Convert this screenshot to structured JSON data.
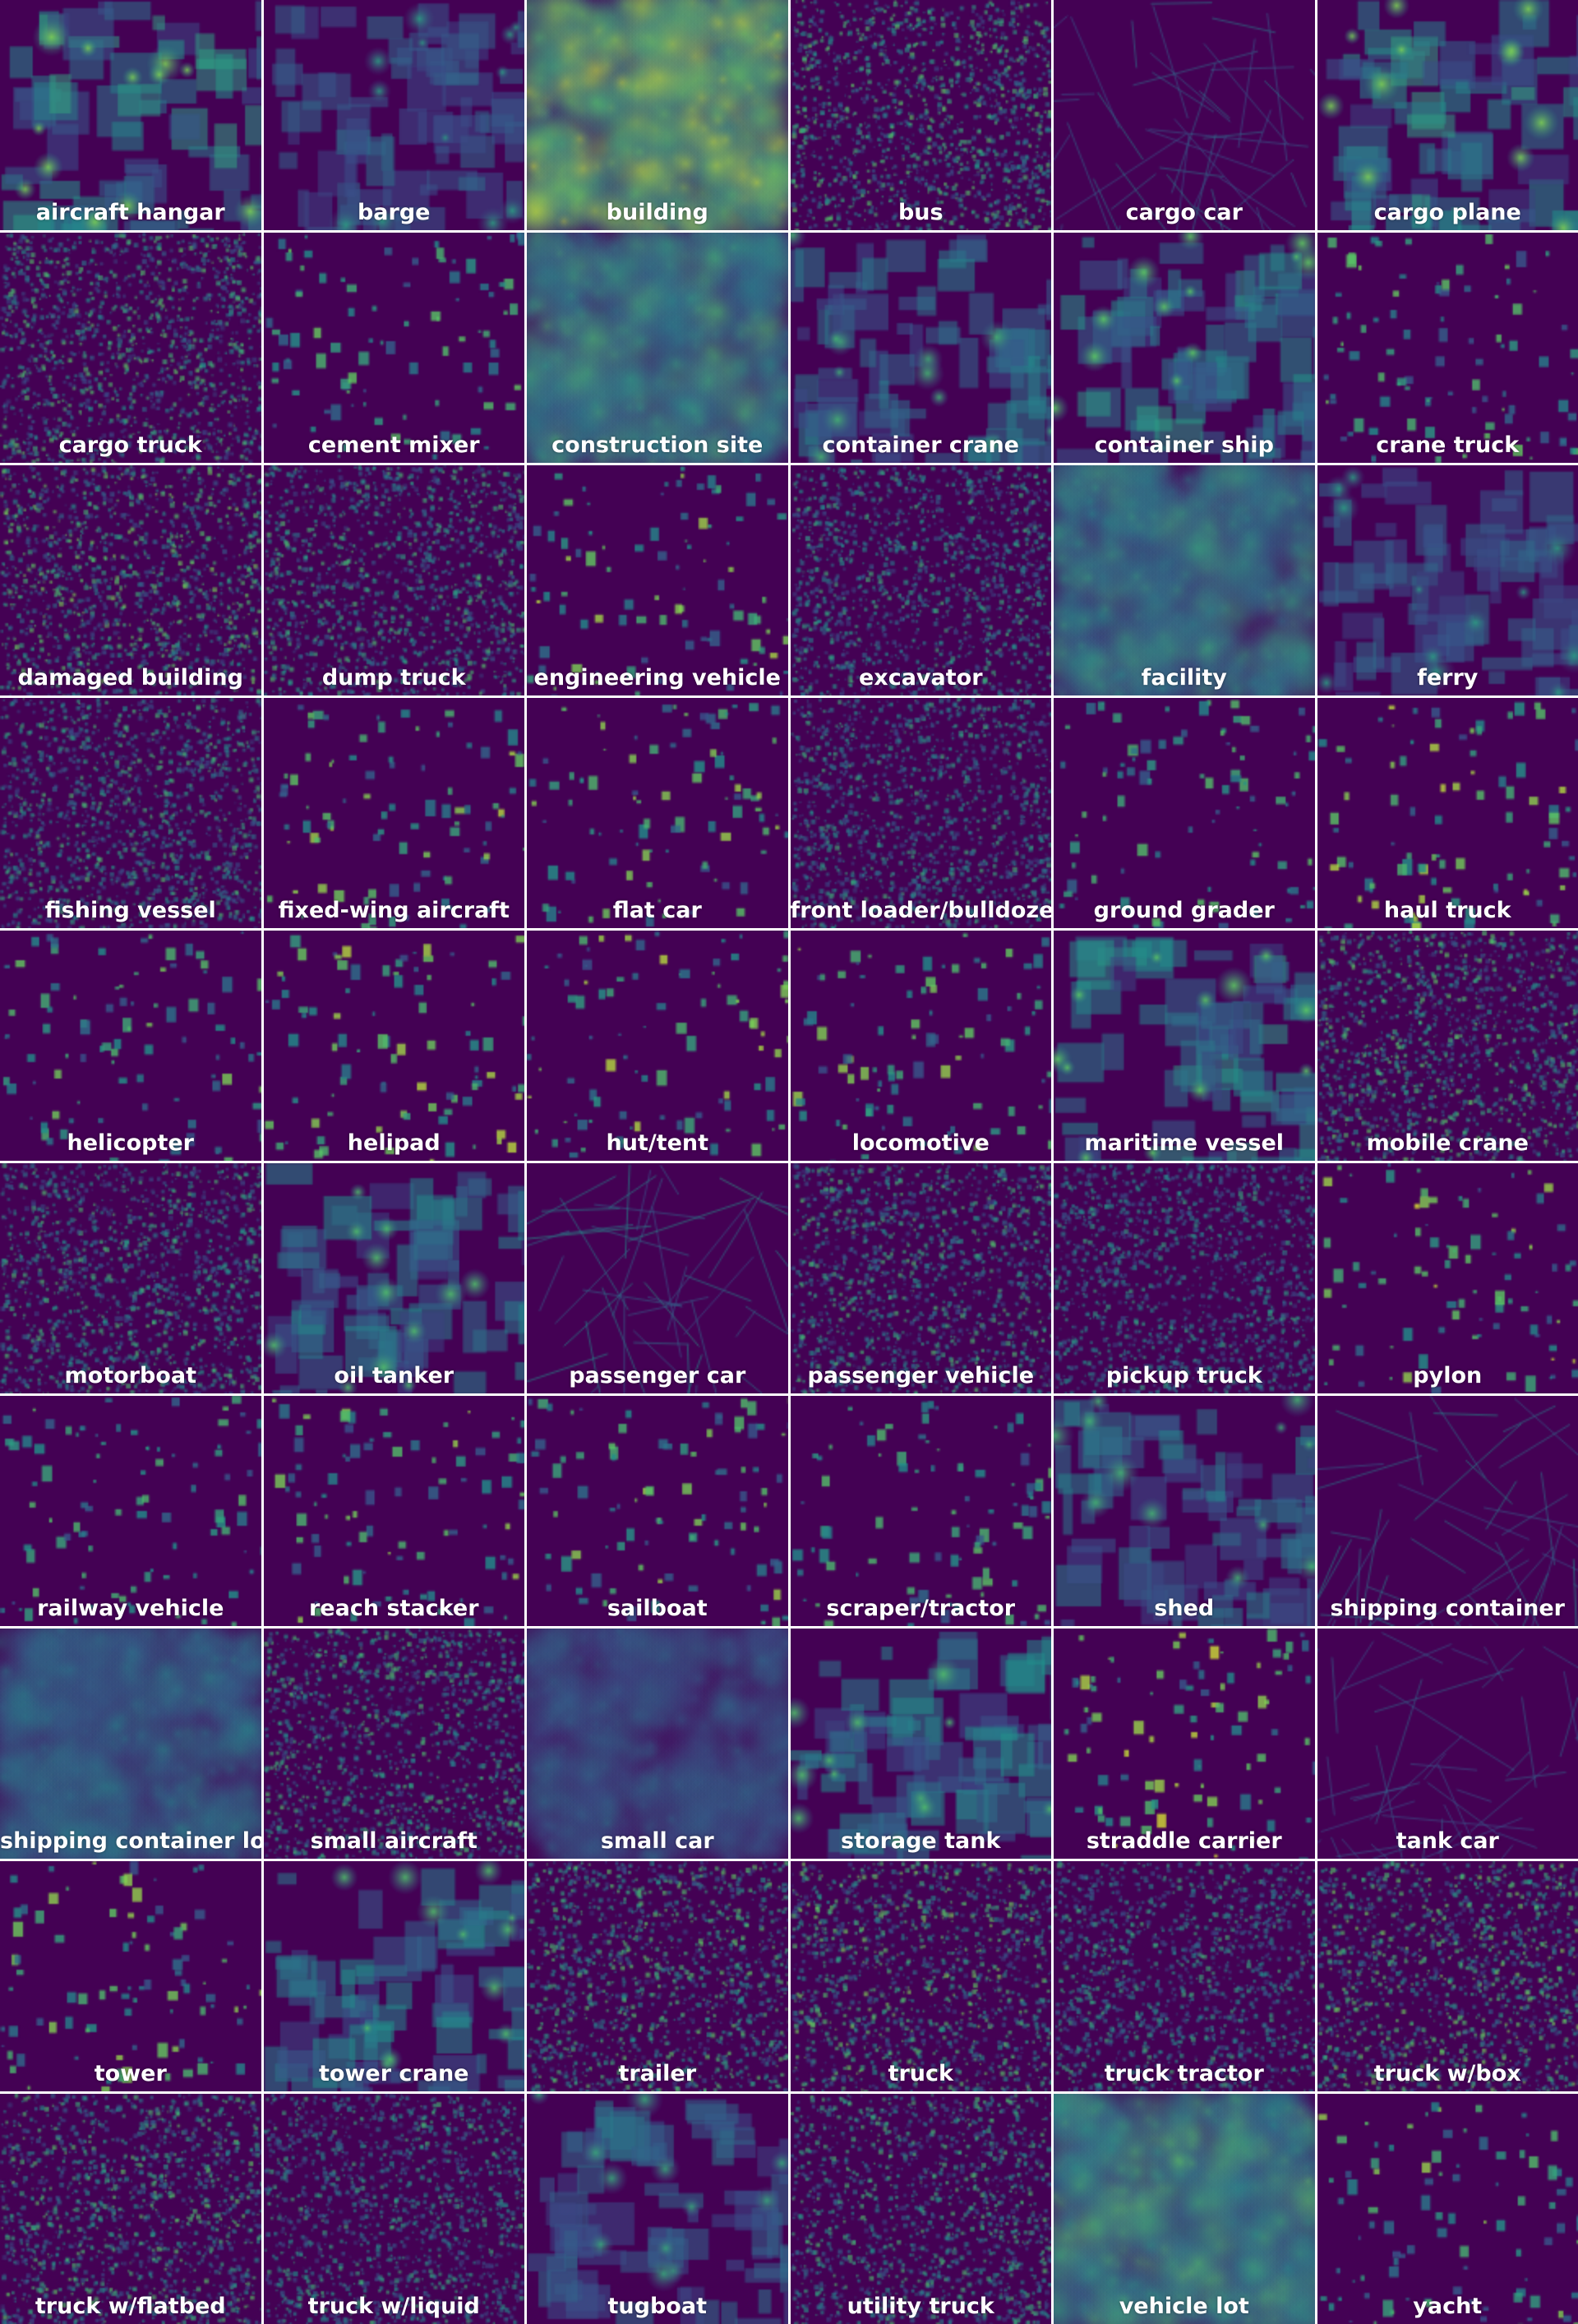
{
  "colormap": {
    "name": "viridis",
    "low": "#440154",
    "mid_low": "#3b528b",
    "mid": "#21918c",
    "mid_high": "#5ec962",
    "high": "#fde725"
  },
  "tiles": [
    {
      "label": "aircraft hangar",
      "style": "boxes",
      "intensity": 0.45
    },
    {
      "label": "barge",
      "style": "boxes",
      "intensity": 0.2
    },
    {
      "label": "building",
      "style": "dense",
      "intensity": 0.85
    },
    {
      "label": "bus",
      "style": "speckle",
      "intensity": 0.3
    },
    {
      "label": "cargo car",
      "style": "lines",
      "intensity": 0.2
    },
    {
      "label": "cargo plane",
      "style": "boxes",
      "intensity": 0.45
    },
    {
      "label": "cargo truck",
      "style": "speckle",
      "intensity": 0.3
    },
    {
      "label": "cement mixer",
      "style": "sparse",
      "intensity": 0.15
    },
    {
      "label": "construction site",
      "style": "dense",
      "intensity": 0.6
    },
    {
      "label": "container crane",
      "style": "boxes",
      "intensity": 0.3
    },
    {
      "label": "container ship",
      "style": "boxes",
      "intensity": 0.4
    },
    {
      "label": "crane truck",
      "style": "sparse",
      "intensity": 0.15
    },
    {
      "label": "damaged building",
      "style": "speckle",
      "intensity": 0.35
    },
    {
      "label": "dump truck",
      "style": "speckle",
      "intensity": 0.25
    },
    {
      "label": "engineering vehicle",
      "style": "sparse",
      "intensity": 0.25
    },
    {
      "label": "excavator",
      "style": "speckle",
      "intensity": 0.2
    },
    {
      "label": "facility",
      "style": "dense",
      "intensity": 0.55
    },
    {
      "label": "ferry",
      "style": "boxes",
      "intensity": 0.2
    },
    {
      "label": "fishing vessel",
      "style": "speckle",
      "intensity": 0.25
    },
    {
      "label": "fixed-wing aircraft",
      "style": "sparse",
      "intensity": 0.25
    },
    {
      "label": "flat car",
      "style": "sparse",
      "intensity": 0.2
    },
    {
      "label": "front loader/bulldozer",
      "style": "speckle",
      "intensity": 0.2
    },
    {
      "label": "ground grader",
      "style": "sparse",
      "intensity": 0.1
    },
    {
      "label": "haul truck",
      "style": "sparse",
      "intensity": 0.25
    },
    {
      "label": "helicopter",
      "style": "sparse",
      "intensity": 0.15
    },
    {
      "label": "helipad",
      "style": "sparse",
      "intensity": 0.25
    },
    {
      "label": "hut/tent",
      "style": "sparse",
      "intensity": 0.25
    },
    {
      "label": "locomotive",
      "style": "sparse",
      "intensity": 0.2
    },
    {
      "label": "maritime vessel",
      "style": "boxes",
      "intensity": 0.4
    },
    {
      "label": "mobile crane",
      "style": "speckle",
      "intensity": 0.3
    },
    {
      "label": "motorboat",
      "style": "speckle",
      "intensity": 0.25
    },
    {
      "label": "oil tanker",
      "style": "boxes",
      "intensity": 0.35
    },
    {
      "label": "passenger car",
      "style": "lines",
      "intensity": 0.3
    },
    {
      "label": "passenger vehicle",
      "style": "speckle",
      "intensity": 0.25
    },
    {
      "label": "pickup truck",
      "style": "speckle",
      "intensity": 0.15
    },
    {
      "label": "pylon",
      "style": "sparse",
      "intensity": 0.3
    },
    {
      "label": "railway vehicle",
      "style": "sparse",
      "intensity": 0.1
    },
    {
      "label": "reach stacker",
      "style": "sparse",
      "intensity": 0.2
    },
    {
      "label": "sailboat",
      "style": "sparse",
      "intensity": 0.2
    },
    {
      "label": "scraper/tractor",
      "style": "sparse",
      "intensity": 0.1
    },
    {
      "label": "shed",
      "style": "boxes",
      "intensity": 0.3
    },
    {
      "label": "shipping container",
      "style": "lines",
      "intensity": 0.25
    },
    {
      "label": "shipping container lot",
      "style": "dense",
      "intensity": 0.45
    },
    {
      "label": "small aircraft",
      "style": "speckle",
      "intensity": 0.25
    },
    {
      "label": "small car",
      "style": "dense",
      "intensity": 0.35
    },
    {
      "label": "storage tank",
      "style": "boxes",
      "intensity": 0.35
    },
    {
      "label": "straddle carrier",
      "style": "sparse",
      "intensity": 0.3
    },
    {
      "label": "tank car",
      "style": "lines",
      "intensity": 0.1
    },
    {
      "label": "tower",
      "style": "sparse",
      "intensity": 0.2
    },
    {
      "label": "tower crane",
      "style": "boxes",
      "intensity": 0.35
    },
    {
      "label": "trailer",
      "style": "speckle",
      "intensity": 0.3
    },
    {
      "label": "truck",
      "style": "speckle",
      "intensity": 0.35
    },
    {
      "label": "truck tractor",
      "style": "speckle",
      "intensity": 0.2
    },
    {
      "label": "truck w/box",
      "style": "speckle",
      "intensity": 0.35
    },
    {
      "label": "truck w/flatbed",
      "style": "speckle",
      "intensity": 0.3
    },
    {
      "label": "truck w/liquid",
      "style": "speckle",
      "intensity": 0.2
    },
    {
      "label": "tugboat",
      "style": "boxes",
      "intensity": 0.25
    },
    {
      "label": "utility truck",
      "style": "speckle",
      "intensity": 0.25
    },
    {
      "label": "vehicle lot",
      "style": "dense",
      "intensity": 0.65
    },
    {
      "label": "yacht",
      "style": "sparse",
      "intensity": 0.2
    }
  ]
}
